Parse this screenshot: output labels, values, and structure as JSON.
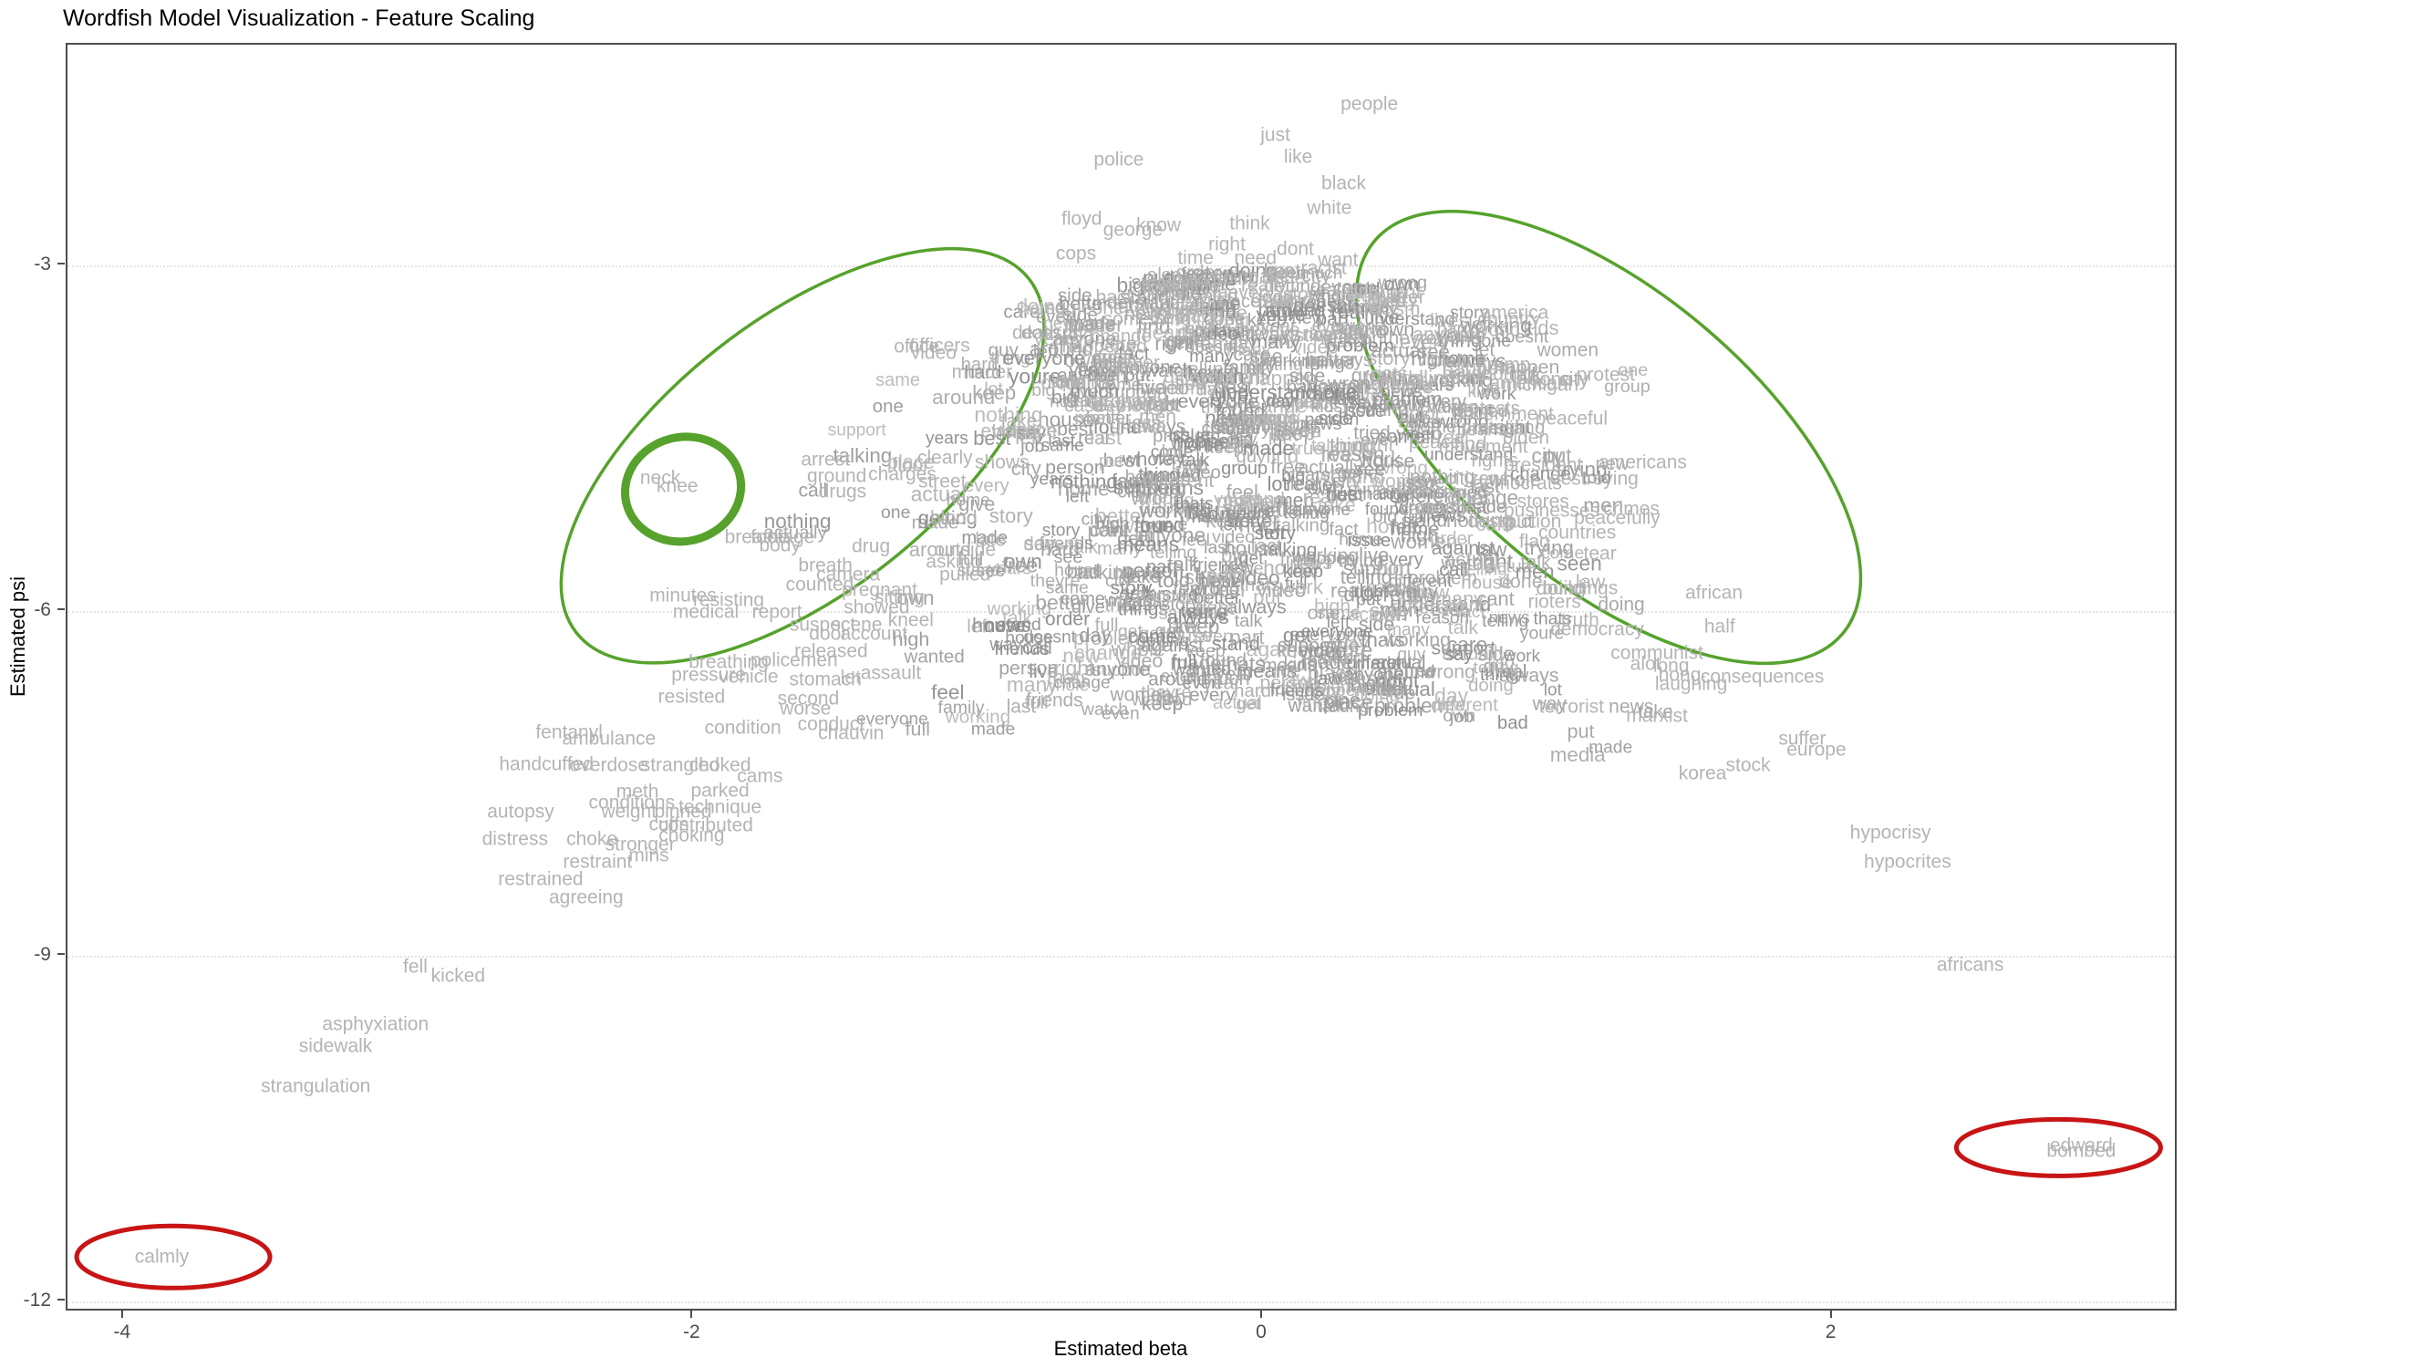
{
  "title": "Wordfish Model Visualization - Feature Scaling",
  "chart_data": {
    "type": "scatter",
    "variant": "wordfish-text-scatter",
    "title": "Wordfish Model Visualization - Feature Scaling",
    "xlabel": "Estimated beta",
    "ylabel": "Estimated psi",
    "xlim": [
      -4.198,
      3.215
    ],
    "ylim": [
      -12.095,
      -1.083
    ],
    "x_ticks": [
      -4,
      -2,
      0,
      2
    ],
    "y_ticks": [
      -3,
      -6,
      -9,
      -12
    ],
    "grid": "horizontal-dotted",
    "word_color": "#b4b4b4",
    "highlight_green": "#56a22c",
    "highlight_red": "#c81414",
    "words": [
      {
        "t": "people",
        "b": 0.38,
        "p": -1.61
      },
      {
        "t": "just",
        "b": 0.05,
        "p": -1.88
      },
      {
        "t": "like",
        "b": 0.13,
        "p": -2.07
      },
      {
        "t": "black",
        "b": 0.29,
        "p": -2.3
      },
      {
        "t": "white",
        "b": 0.24,
        "p": -2.52
      },
      {
        "t": "think",
        "b": -0.04,
        "p": -2.65
      },
      {
        "t": "police",
        "b": -0.5,
        "p": -2.1
      },
      {
        "t": "floyd",
        "b": -0.63,
        "p": -2.61
      },
      {
        "t": "george",
        "b": -0.45,
        "p": -2.71
      },
      {
        "t": "know",
        "b": -0.36,
        "p": -2.67
      },
      {
        "t": "cops",
        "b": -0.65,
        "p": -2.91
      },
      {
        "t": "right",
        "b": -0.12,
        "p": -2.83
      },
      {
        "t": "dont",
        "b": 0.12,
        "p": -2.87
      },
      {
        "t": "time",
        "b": -0.23,
        "p": -2.95
      },
      {
        "t": "need",
        "b": -0.02,
        "p": -2.95
      },
      {
        "t": "want",
        "b": 0.27,
        "p": -2.97
      },
      {
        "t": "racist",
        "b": 0.22,
        "p": -3.04
      },
      {
        "t": "also",
        "b": -0.34,
        "p": -3.1
      },
      {
        "t": "said",
        "b": -0.36,
        "p": -3.18
      },
      {
        "t": "still",
        "b": -0.27,
        "p": -3.18
      },
      {
        "t": "going",
        "b": -0.09,
        "p": -3.13
      },
      {
        "t": "make",
        "b": 0.02,
        "p": -3.11
      },
      {
        "t": "really",
        "b": 0.01,
        "p": -3.19
      },
      {
        "t": "never",
        "b": -0.07,
        "p": -3.25
      },
      {
        "t": "good",
        "b": 0.04,
        "p": -3.29
      },
      {
        "t": "stop",
        "b": 0.14,
        "p": -3.27
      },
      {
        "t": "back",
        "b": -0.51,
        "p": -3.29
      },
      {
        "t": "killed",
        "b": -0.36,
        "p": -3.31
      },
      {
        "t": "someone",
        "b": -0.62,
        "p": -3.39
      },
      {
        "t": "saying",
        "b": -0.35,
        "p": -3.42
      },
      {
        "t": "something",
        "b": -0.4,
        "p": -3.48
      },
      {
        "t": "died",
        "b": -0.23,
        "p": -3.6
      },
      {
        "t": "believe",
        "b": 0.03,
        "p": -3.58
      },
      {
        "t": "life",
        "b": -0.24,
        "p": -3.4
      },
      {
        "t": "look",
        "b": -0.12,
        "p": -3.48
      },
      {
        "t": "justice",
        "b": 0.16,
        "p": -3.63
      },
      {
        "t": "race",
        "b": 0.21,
        "p": -3.61
      },
      {
        "t": "matter",
        "b": 0.48,
        "p": -3.29
      },
      {
        "t": "racism",
        "b": 0.46,
        "p": -3.4
      },
      {
        "t": "lives",
        "b": 0.66,
        "p": -3.5
      },
      {
        "t": "america",
        "b": 0.89,
        "p": -3.43
      },
      {
        "t": "country",
        "b": 0.87,
        "p": -3.48
      },
      {
        "t": "world",
        "b": 0.83,
        "p": -3.58
      },
      {
        "t": "anything",
        "b": 0.66,
        "p": -3.62
      },
      {
        "t": "violence",
        "b": 0.67,
        "p": -3.84
      },
      {
        "t": "trump",
        "b": 0.86,
        "p": -3.88
      },
      {
        "t": "looting",
        "b": 0.86,
        "p": -3.96
      },
      {
        "t": "show",
        "b": 0.71,
        "p": -4.0
      },
      {
        "t": "american",
        "b": 0.94,
        "p": -4.04
      },
      {
        "t": "michigan",
        "b": 0.98,
        "p": -4.05
      },
      {
        "t": "protest",
        "b": 1.21,
        "p": -3.97
      },
      {
        "t": "riots",
        "b": 0.45,
        "p": -3.96
      },
      {
        "t": "hate",
        "b": 0.48,
        "p": -4.05
      },
      {
        "t": "state",
        "b": 0.53,
        "p": -4.08
      },
      {
        "t": "color",
        "b": 0.56,
        "p": -4.31
      },
      {
        "t": "protests",
        "b": 0.79,
        "p": -4.26
      },
      {
        "t": "government",
        "b": 0.85,
        "p": -4.31
      },
      {
        "t": "peaceful",
        "b": 1.09,
        "p": -4.35
      },
      {
        "t": "protesting",
        "b": 0.85,
        "p": -4.43
      },
      {
        "t": "biden",
        "b": 0.93,
        "p": -4.51
      },
      {
        "t": "peace",
        "b": 0.61,
        "p": -4.55
      },
      {
        "t": "movement",
        "b": 0.78,
        "p": -4.59
      },
      {
        "t": "rights",
        "b": 0.82,
        "p": -4.71
      },
      {
        "t": "americans",
        "b": 1.34,
        "p": -4.73
      },
      {
        "t": "president",
        "b": 0.99,
        "p": -4.75
      },
      {
        "t": "destroying",
        "b": 1.17,
        "p": -4.87
      },
      {
        "t": "democrats",
        "b": 0.9,
        "p": -4.91
      },
      {
        "t": "citizens",
        "b": 0.76,
        "p": -4.87
      },
      {
        "t": "whites",
        "b": 0.61,
        "p": -4.99
      },
      {
        "t": "cities",
        "b": 0.73,
        "p": -5.04
      },
      {
        "t": "stores",
        "b": 0.99,
        "p": -5.07
      },
      {
        "t": "cars",
        "b": 0.55,
        "p": -5.13
      },
      {
        "t": "businesses",
        "b": 1.02,
        "p": -5.15
      },
      {
        "t": "crimes",
        "b": 1.3,
        "p": -5.13
      },
      {
        "t": "destruction",
        "b": 0.89,
        "p": -5.24
      },
      {
        "t": "peacefully",
        "b": 1.25,
        "p": -5.21
      },
      {
        "t": "countries",
        "b": 1.11,
        "p": -5.34
      },
      {
        "t": "flag",
        "b": 0.96,
        "p": -5.42
      },
      {
        "t": "tear",
        "b": 1.19,
        "p": -5.52
      },
      {
        "t": "buildings",
        "b": 1.12,
        "p": -5.82
      },
      {
        "t": "rioters",
        "b": 1.03,
        "p": -5.94
      },
      {
        "t": "truth",
        "b": 1.12,
        "p": -6.1
      },
      {
        "t": "democracy",
        "b": 1.18,
        "p": -6.18
      },
      {
        "t": "african",
        "b": 1.59,
        "p": -5.86
      },
      {
        "t": "half",
        "b": 1.61,
        "p": -6.15
      },
      {
        "t": "communist",
        "b": 1.39,
        "p": -6.38
      },
      {
        "t": "alot",
        "b": 1.35,
        "p": -6.48
      },
      {
        "t": "long",
        "b": 1.44,
        "p": -6.49
      },
      {
        "t": "hong",
        "b": 1.47,
        "p": -6.57
      },
      {
        "t": "consequences",
        "b": 1.76,
        "p": -6.59
      },
      {
        "t": "laughing",
        "b": 1.51,
        "p": -6.65
      },
      {
        "t": "terrorist",
        "b": 1.09,
        "p": -6.85
      },
      {
        "t": "marxist",
        "b": 1.39,
        "p": -6.93
      },
      {
        "t": "suffer",
        "b": 1.9,
        "p": -7.13
      },
      {
        "t": "europe",
        "b": 1.95,
        "p": -7.22
      },
      {
        "t": "stock",
        "b": 1.71,
        "p": -7.36
      },
      {
        "t": "korea",
        "b": 1.55,
        "p": -7.43
      },
      {
        "t": "hypocrisy",
        "b": 2.21,
        "p": -7.94
      },
      {
        "t": "hypocrites",
        "b": 2.27,
        "p": -8.2
      },
      {
        "t": "africans",
        "b": 2.49,
        "p": -9.09
      },
      {
        "t": "edward",
        "b": 2.88,
        "p": -10.66
      },
      {
        "t": "bombed",
        "b": 2.88,
        "p": -10.71
      },
      {
        "t": "death",
        "b": -0.79,
        "p": -3.6
      },
      {
        "t": "officers",
        "b": -1.13,
        "p": -3.71
      },
      {
        "t": "office",
        "b": -1.21,
        "p": -3.72
      },
      {
        "t": "video",
        "b": -1.15,
        "p": -3.78
      },
      {
        "t": "murder",
        "b": -0.98,
        "p": -3.94
      },
      {
        "t": "happened",
        "b": -0.55,
        "p": -3.72
      },
      {
        "t": "first",
        "b": -0.52,
        "p": -3.82
      },
      {
        "t": "another",
        "b": -0.47,
        "p": -3.86
      },
      {
        "t": "called",
        "b": -0.48,
        "p": -3.92
      },
      {
        "t": "didnt",
        "b": -0.7,
        "p": -4.04
      },
      {
        "t": "criminal",
        "b": -0.61,
        "p": -4.02
      },
      {
        "t": "probably",
        "b": -0.46,
        "p": -4.2
      },
      {
        "t": "case",
        "b": -0.62,
        "p": -4.24
      },
      {
        "t": "thought",
        "b": -0.4,
        "p": -4.24
      },
      {
        "t": "guess",
        "b": -0.44,
        "p": -4.39
      },
      {
        "t": "man",
        "b": -0.59,
        "p": -4.35
      },
      {
        "t": "fake",
        "b": -0.85,
        "p": -4.37
      },
      {
        "t": "evidence",
        "b": -0.85,
        "p": -4.46
      },
      {
        "t": "arrest",
        "b": -1.53,
        "p": -4.7
      },
      {
        "t": "ground",
        "b": -1.49,
        "p": -4.85
      },
      {
        "t": "drugs",
        "b": -1.47,
        "p": -4.98
      },
      {
        "t": "charges",
        "b": -1.26,
        "p": -4.83
      },
      {
        "t": "clearly",
        "b": -1.11,
        "p": -4.69
      },
      {
        "t": "floor",
        "b": -1.23,
        "p": -4.75
      },
      {
        "t": "street",
        "b": -1.12,
        "p": -4.89
      },
      {
        "t": "shows",
        "b": -0.91,
        "p": -4.73
      },
      {
        "t": "neck",
        "b": -2.11,
        "p": -4.86
      },
      {
        "t": "knee",
        "b": -2.05,
        "p": -4.93
      },
      {
        "t": "blood",
        "b": -1.08,
        "p": -5.21
      },
      {
        "t": "breathe",
        "b": -1.77,
        "p": -5.38
      },
      {
        "t": "footage",
        "b": -1.68,
        "p": -5.38
      },
      {
        "t": "body",
        "b": -1.69,
        "p": -5.45
      },
      {
        "t": "drug",
        "b": -1.37,
        "p": -5.46
      },
      {
        "t": "breath",
        "b": -1.53,
        "p": -5.62
      },
      {
        "t": "camera",
        "b": -1.45,
        "p": -5.7
      },
      {
        "t": "counted",
        "b": -1.55,
        "p": -5.79
      },
      {
        "t": "late",
        "b": -0.95,
        "p": -5.4
      },
      {
        "t": "outside",
        "b": -1.04,
        "p": -5.49
      },
      {
        "t": "asking",
        "b": -1.08,
        "p": -5.59
      },
      {
        "t": "pulled",
        "b": -1.04,
        "p": -5.7
      },
      {
        "t": "minutes",
        "b": -2.03,
        "p": -5.88
      },
      {
        "t": "resisting",
        "b": -1.87,
        "p": -5.92
      },
      {
        "t": "medical",
        "b": -1.95,
        "p": -6.03
      },
      {
        "t": "report",
        "b": -1.7,
        "p": -6.03
      },
      {
        "t": "pregnant",
        "b": -1.34,
        "p": -5.84
      },
      {
        "t": "sitting",
        "b": -1.27,
        "p": -5.9
      },
      {
        "t": "showed",
        "b": -1.35,
        "p": -5.99
      },
      {
        "t": "suspect",
        "b": -1.54,
        "p": -6.14
      },
      {
        "t": "scene",
        "b": -1.42,
        "p": -6.14
      },
      {
        "t": "door",
        "b": -1.52,
        "p": -6.22
      },
      {
        "t": "account",
        "b": -1.36,
        "p": -6.22
      },
      {
        "t": "kneel",
        "b": -1.23,
        "p": -6.1
      },
      {
        "t": "released",
        "b": -1.51,
        "p": -6.37
      },
      {
        "t": "policemen",
        "b": -1.64,
        "p": -6.45
      },
      {
        "t": "breathing",
        "b": -1.87,
        "p": -6.46
      },
      {
        "t": "pressure",
        "b": -1.94,
        "p": -6.57
      },
      {
        "t": "vehicle",
        "b": -1.8,
        "p": -6.59
      },
      {
        "t": "stomach",
        "b": -1.53,
        "p": -6.61
      },
      {
        "t": "assault",
        "b": -1.3,
        "p": -6.56
      },
      {
        "t": "resisted",
        "b": -2.0,
        "p": -6.76
      },
      {
        "t": "second",
        "b": -1.59,
        "p": -6.78
      },
      {
        "t": "worse",
        "b": -1.6,
        "p": -6.87
      },
      {
        "t": "condition",
        "b": -1.82,
        "p": -7.03
      },
      {
        "t": "conduct",
        "b": -1.51,
        "p": -7.0
      },
      {
        "t": "chauvin",
        "b": -1.44,
        "p": -7.08
      },
      {
        "t": "fentanyl",
        "b": -2.43,
        "p": -7.07
      },
      {
        "t": "ambulance",
        "b": -2.29,
        "p": -7.13
      },
      {
        "t": "handcuffed",
        "b": -2.51,
        "p": -7.35
      },
      {
        "t": "overdose",
        "b": -2.29,
        "p": -7.36
      },
      {
        "t": "strangled",
        "b": -2.04,
        "p": -7.36
      },
      {
        "t": "choked",
        "b": -1.9,
        "p": -7.36
      },
      {
        "t": "cams",
        "b": -1.76,
        "p": -7.45
      },
      {
        "t": "meth",
        "b": -2.19,
        "p": -7.59
      },
      {
        "t": "parked",
        "b": -1.9,
        "p": -7.58
      },
      {
        "t": "technique",
        "b": -1.9,
        "p": -7.72
      },
      {
        "t": "conditions",
        "b": -2.21,
        "p": -7.68
      },
      {
        "t": "weight",
        "b": -2.22,
        "p": -7.76
      },
      {
        "t": "pinned",
        "b": -2.03,
        "p": -7.76
      },
      {
        "t": "cuffs",
        "b": -2.08,
        "p": -7.87
      },
      {
        "t": "contributed",
        "b": -1.95,
        "p": -7.88
      },
      {
        "t": "autopsy",
        "b": -2.6,
        "p": -7.76
      },
      {
        "t": "distress",
        "b": -2.62,
        "p": -8.0
      },
      {
        "t": "choke",
        "b": -2.35,
        "p": -8.0
      },
      {
        "t": "choking",
        "b": -2.0,
        "p": -7.97
      },
      {
        "t": "stronger",
        "b": -2.18,
        "p": -8.05
      },
      {
        "t": "mins",
        "b": -2.15,
        "p": -8.14
      },
      {
        "t": "restraint",
        "b": -2.33,
        "p": -8.2
      },
      {
        "t": "restrained",
        "b": -2.53,
        "p": -8.35
      },
      {
        "t": "agreeing",
        "b": -2.37,
        "p": -8.51
      },
      {
        "t": "fell",
        "b": -2.97,
        "p": -9.11
      },
      {
        "t": "kicked",
        "b": -2.82,
        "p": -9.19
      },
      {
        "t": "asphyxiation",
        "b": -3.11,
        "p": -9.61
      },
      {
        "t": "sidewalk",
        "b": -3.25,
        "p": -9.8
      },
      {
        "t": "strangulation",
        "b": -3.32,
        "p": -10.15
      },
      {
        "t": "calmly",
        "b": -3.86,
        "p": -11.63
      }
    ],
    "annotations": {
      "ellipses": [
        {
          "name": "green-cluster-left",
          "cx": -1.61,
          "cy": -4.67,
          "rx": 315,
          "ry": 150,
          "rot": -38,
          "sw": 3.5,
          "color": "#56a22c"
        },
        {
          "name": "green-cluster-right",
          "cx": 1.22,
          "cy": -4.51,
          "rx": 335,
          "ry": 160,
          "rot": 40,
          "sw": 3.5,
          "color": "#56a22c"
        },
        {
          "name": "green-circle-neck-knee",
          "cx": -2.03,
          "cy": -4.96,
          "rx": 64,
          "ry": 57,
          "rot": -15,
          "sw": 9,
          "color": "#56a22c"
        },
        {
          "name": "red-ellipse-calmly",
          "cx": -3.82,
          "cy": -11.63,
          "rx": 106,
          "ry": 34,
          "rot": 0,
          "sw": 5,
          "color": "#c81414"
        },
        {
          "name": "red-ellipse-edward-bombed",
          "cx": 2.8,
          "cy": -10.68,
          "rx": 112,
          "ry": 31,
          "rot": 0,
          "sw": 5,
          "color": "#c81414"
        }
      ]
    },
    "dense_cloud": {
      "note": "illegible overlapping word mass in plot center",
      "count": 800,
      "seed": 11,
      "beta_sigma": 0.55,
      "beta_clip": 1.72,
      "top_a": -3.05,
      "top_b": -0.5,
      "bot_a": -6.85,
      "bot_b": -0.35,
      "vocab": [
        "get",
        "one",
        "even",
        "see",
        "way",
        "much",
        "every",
        "cant",
        "live",
        "take",
        "years",
        "come",
        "around",
        "point",
        "put",
        "law",
        "order",
        "part",
        "real",
        "actual",
        "actually",
        "city",
        "new",
        "now",
        "many",
        "watch",
        "guy",
        "thing",
        "things",
        "whole",
        "happen",
        "made",
        "getting",
        "done",
        "doesnt",
        "day",
        "keep",
        "let",
        "last",
        "give",
        "find",
        "found",
        "lot",
        "person",
        "group",
        "house",
        "place",
        "different",
        "same",
        "own",
        "support",
        "against",
        "everyone",
        "anyone",
        "nothing",
        "always",
        "trying",
        "tried",
        "thats",
        "youre",
        "theyre",
        "doing",
        "seen",
        "say",
        "talk",
        "talking",
        "media",
        "news",
        "story",
        "wrong",
        "bad",
        "better",
        "best",
        "sure",
        "means",
        "change",
        "problem",
        "issue",
        "call",
        "stand",
        "understand",
        "fact",
        "reason",
        "side",
        "true",
        "hard",
        "little",
        "big",
        "full",
        "high",
        "free",
        "job",
        "work",
        "working",
        "home",
        "care",
        "feel",
        "left",
        "right",
        "men",
        "women",
        "kids",
        "family",
        "friends",
        "video",
        "wanted",
        "telling",
        "told",
        "year"
      ]
    }
  }
}
